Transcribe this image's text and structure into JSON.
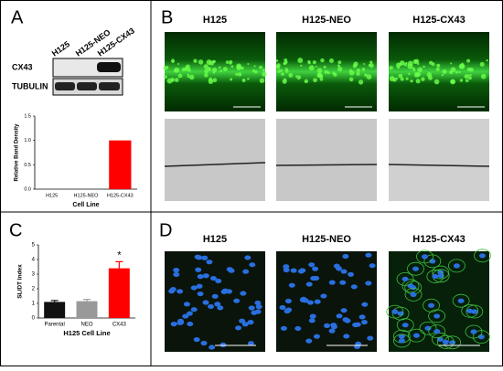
{
  "labels": {
    "a": "A",
    "b": "B",
    "c": "C",
    "d": "D"
  },
  "blot": {
    "lanes": [
      "H125",
      "H125-NEO",
      "H125-CX43"
    ],
    "rows": [
      "CX43",
      "TUBULIN"
    ]
  },
  "panel_b": {
    "columns": [
      "H125",
      "H125-NEO",
      "H125-CX43"
    ]
  },
  "panel_d": {
    "columns": [
      "H125",
      "H125-NEO",
      "H125-CX43"
    ]
  },
  "chart_data": [
    {
      "type": "bar",
      "ylabel": "Relative Band Density",
      "xlabel": "Cell Line",
      "categories": [
        "H125",
        "H125-NEO",
        "H125-CX43"
      ],
      "values": [
        0,
        0,
        1.0
      ],
      "colors": [
        "#ff0000",
        "#ff0000",
        "#ff0000"
      ],
      "ylim": [
        0,
        1.5
      ],
      "yticks": [
        {
          "value": 0,
          "label": "0.0"
        },
        0.5,
        {
          "value": 1,
          "label": "1.0"
        },
        1.5
      ]
    },
    {
      "type": "bar",
      "ylabel": "SL/DT Index",
      "xlabel": "H125 Cell Line",
      "categories": [
        "Parental",
        "NEO",
        "CX43"
      ],
      "values": [
        1.1,
        1.15,
        3.4
      ],
      "errors": [
        0.1,
        0.12,
        0.45
      ],
      "colors": [
        "#111111",
        "#999999",
        "#ff0000"
      ],
      "annotation": "*",
      "ylim": [
        0,
        5
      ],
      "yticks": [
        0,
        1,
        2,
        3,
        4,
        5
      ]
    }
  ]
}
